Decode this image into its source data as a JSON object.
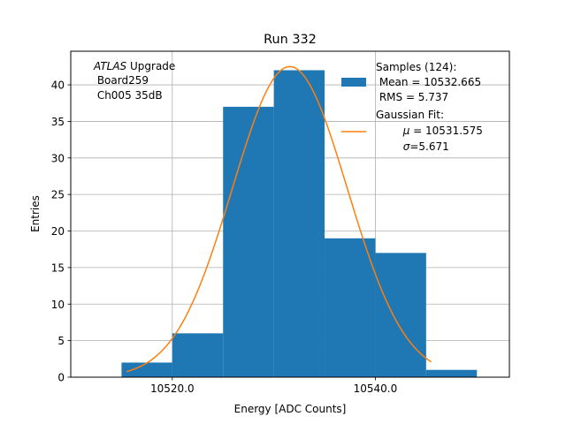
{
  "chart_data": {
    "type": "bar",
    "title": "Run 332",
    "xlabel": "Energy [ADC Counts]",
    "ylabel": "Entries",
    "xlim": [
      10510.0,
      10553.2
    ],
    "ylim": [
      0,
      44.6
    ],
    "grid": true,
    "xticks": [
      10520.0,
      10540.0
    ],
    "xtick_labels": [
      "10520.0",
      "10540.0"
    ],
    "yticks": [
      0,
      5,
      10,
      15,
      20,
      25,
      30,
      35,
      40
    ],
    "ytick_labels": [
      "0",
      "5",
      "10",
      "15",
      "20",
      "25",
      "30",
      "35",
      "40"
    ],
    "bins": [
      {
        "x0": 10515.0,
        "x1": 10520.0,
        "count": 2
      },
      {
        "x0": 10520.0,
        "x1": 10525.0,
        "count": 6
      },
      {
        "x0": 10525.0,
        "x1": 10530.0,
        "count": 37
      },
      {
        "x0": 10530.0,
        "x1": 10535.0,
        "count": 42
      },
      {
        "x0": 10535.0,
        "x1": 10540.0,
        "count": 19
      },
      {
        "x0": 10540.0,
        "x1": 10545.0,
        "count": 17
      },
      {
        "x0": 10545.0,
        "x1": 10550.0,
        "count": 1
      }
    ],
    "series": [
      {
        "type": "histogram",
        "color": "#1f77b4"
      },
      {
        "type": "line",
        "color": "#ff7f0e",
        "function": "gaussian",
        "mu": 10531.575,
        "sigma": 5.671,
        "amplitude": 42.5,
        "x_range": [
          10515.5,
          10545.5
        ]
      }
    ],
    "annotation": {
      "italic": "ATLAS",
      "line1_rest": " Upgrade",
      "line2": " Board259",
      "line3": " Ch005 35dB"
    },
    "legend": {
      "position": "top-right",
      "hist_lines": [
        "Samples (124):",
        " Mean = 10532.665",
        " RMS = 5.737"
      ],
      "fit_line1": "Gaussian Fit:",
      "fit_mu_symbol": "μ",
      "fit_mu_text": " = 10531.575",
      "fit_sigma_symbol": "σ",
      "fit_sigma_text": "=5.671"
    }
  }
}
